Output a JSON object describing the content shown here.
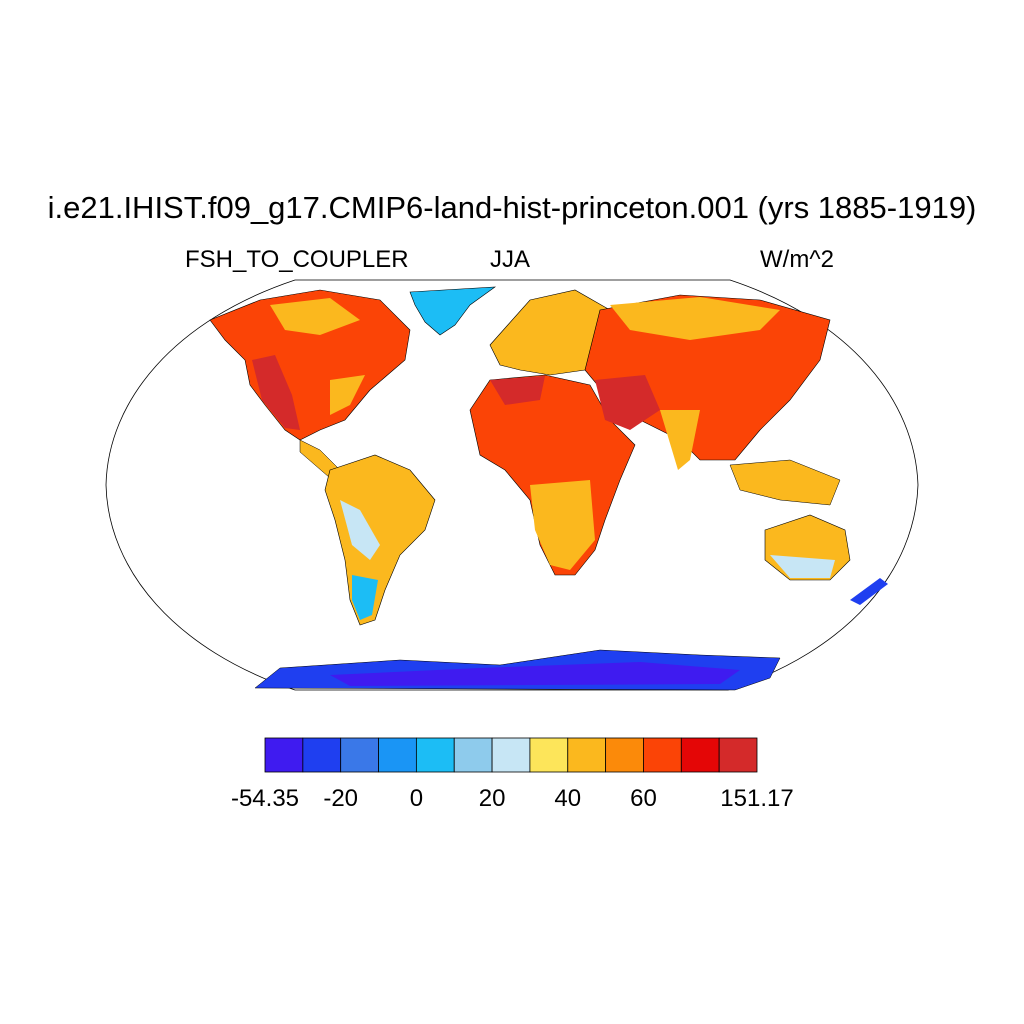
{
  "title": "i.e21.IHIST.f09_g17.CMIP6-land-hist-princeton.001 (yrs 1885-1919)",
  "variable": "FSH_TO_COUPLER",
  "season": "JJA",
  "units": "W/m^2",
  "colorbar": {
    "colors": [
      "#3f1bf0",
      "#1f3ff0",
      "#3a78e8",
      "#1a95f5",
      "#1cbdf5",
      "#8ecbec",
      "#c7e6f5",
      "#fde55a",
      "#fbb81e",
      "#fb8a0a",
      "#fb4406",
      "#e40606",
      "#d42a2a"
    ],
    "tick_labels": [
      "-54.35",
      "-20",
      "0",
      "20",
      "40",
      "60",
      "151.17"
    ]
  },
  "legend_icon": "colorbar"
}
